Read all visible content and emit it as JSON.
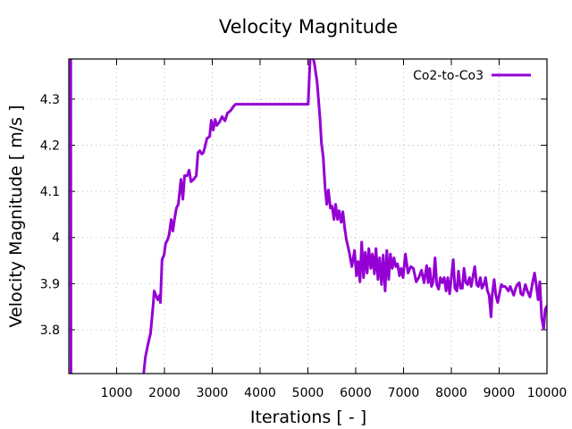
{
  "chart_data": {
    "type": "line",
    "title": "Velocity Magnitude",
    "xlabel": "Iterations [ - ]",
    "ylabel": "Velocity Magnitude [ m/s ]",
    "xlim": [
      0,
      10000
    ],
    "ylim": [
      3.705,
      4.387
    ],
    "xticks": [
      1000,
      2000,
      3000,
      4000,
      5000,
      6000,
      7000,
      8000,
      9000,
      10000
    ],
    "xtick_labels": [
      "1000",
      "2000",
      "3000",
      "4000",
      "5000",
      "6000",
      "7000",
      "8000",
      "9000",
      "10000"
    ],
    "yticks": [
      3.8,
      3.9,
      4.0,
      4.1,
      4.2,
      4.3
    ],
    "ytick_labels": [
      "3.8",
      "3.9",
      "4",
      "4.1",
      "4.2",
      "4.3"
    ],
    "grid": true,
    "legend": {
      "position": "top-right"
    },
    "series": [
      {
        "name": "Co2-to-Co3",
        "color": "#9400d3",
        "x": [
          40,
          45,
          50,
          1560,
          1600,
          1655,
          1710,
          1765,
          1785,
          1820,
          1860,
          1900,
          1915,
          1950,
          1990,
          2025,
          2065,
          2100,
          2140,
          2175,
          2210,
          2250,
          2290,
          2345,
          2385,
          2420,
          2475,
          2515,
          2555,
          2610,
          2665,
          2700,
          2740,
          2780,
          2815,
          2850,
          2890,
          2945,
          2980,
          3020,
          3060,
          3095,
          3150,
          3205,
          3265,
          3320,
          3375,
          3450,
          3490,
          5005,
          5045,
          5080,
          5135,
          5190,
          5250,
          5285,
          5320,
          5360,
          5395,
          5430,
          5470,
          5505,
          5545,
          5580,
          5620,
          5655,
          5695,
          5730,
          5770,
          5805,
          5865,
          5920,
          5975,
          6015,
          6050,
          6090,
          6125,
          6165,
          6200,
          6240,
          6275,
          6315,
          6350,
          6390,
          6425,
          6465,
          6500,
          6540,
          6575,
          6615,
          6650,
          6690,
          6725,
          6765,
          6800,
          6840,
          6875,
          6915,
          6950,
          6990,
          7040,
          7095,
          7150,
          7205,
          7265,
          7320,
          7375,
          7430,
          7485,
          7515,
          7550,
          7585,
          7620,
          7660,
          7695,
          7735,
          7770,
          7810,
          7850,
          7890,
          7925,
          7965,
          8000,
          8040,
          8075,
          8115,
          8150,
          8190,
          8230,
          8265,
          8305,
          8340,
          8380,
          8415,
          8455,
          8490,
          8530,
          8565,
          8605,
          8640,
          8680,
          8715,
          8755,
          8790,
          8830,
          8855,
          8895,
          8930,
          8970,
          9005,
          9045,
          9080,
          9120,
          9155,
          9195,
          9230,
          9270,
          9305,
          9345,
          9380,
          9420,
          9455,
          9495,
          9550,
          9590,
          9645,
          9700,
          9740,
          9775,
          9815,
          9850,
          9890,
          9930,
          9965,
          10000
        ],
        "y": [
          4.6,
          3.6,
          3.6,
          3.7,
          3.74,
          3.768,
          3.793,
          3.855,
          3.884,
          3.875,
          3.865,
          3.875,
          3.859,
          3.952,
          3.962,
          3.987,
          3.995,
          4.006,
          4.039,
          4.014,
          4.039,
          4.064,
          4.072,
          4.126,
          4.083,
          4.134,
          4.134,
          4.146,
          4.121,
          4.126,
          4.134,
          4.184,
          4.188,
          4.181,
          4.184,
          4.198,
          4.215,
          4.219,
          4.254,
          4.233,
          4.256,
          4.243,
          4.25,
          4.262,
          4.253,
          4.27,
          4.274,
          4.285,
          4.289,
          4.289,
          4.385,
          4.4,
          4.378,
          4.339,
          4.262,
          4.204,
          4.175,
          4.107,
          4.072,
          4.103,
          4.064,
          4.068,
          4.039,
          4.072,
          4.039,
          4.058,
          4.033,
          4.056,
          4.02,
          3.995,
          3.968,
          3.937,
          3.972,
          3.917,
          3.948,
          3.904,
          3.99,
          3.913,
          3.968,
          3.923,
          3.976,
          3.933,
          3.964,
          3.921,
          3.976,
          3.909,
          3.956,
          3.898,
          3.962,
          3.884,
          3.972,
          3.909,
          3.964,
          3.933,
          3.956,
          3.937,
          3.943,
          3.917,
          3.933,
          3.913,
          3.964,
          3.923,
          3.937,
          3.933,
          3.904,
          3.913,
          3.929,
          3.902,
          3.939,
          3.902,
          3.933,
          3.894,
          3.904,
          3.956,
          3.898,
          3.888,
          3.913,
          3.902,
          3.913,
          3.884,
          3.913,
          3.878,
          3.913,
          3.952,
          3.89,
          3.884,
          3.927,
          3.89,
          3.89,
          3.933,
          3.902,
          3.898,
          3.913,
          3.894,
          3.917,
          3.937,
          3.898,
          3.894,
          3.913,
          3.89,
          3.898,
          3.913,
          3.884,
          3.875,
          3.828,
          3.875,
          3.909,
          3.875,
          3.859,
          3.878,
          3.898,
          3.894,
          3.894,
          3.89,
          3.884,
          3.894,
          3.884,
          3.875,
          3.89,
          3.898,
          3.902,
          3.878,
          3.875,
          3.898,
          3.884,
          3.871,
          3.902,
          3.923,
          3.898,
          3.865,
          3.904,
          3.826,
          3.802,
          3.845,
          3.851
        ]
      }
    ]
  }
}
